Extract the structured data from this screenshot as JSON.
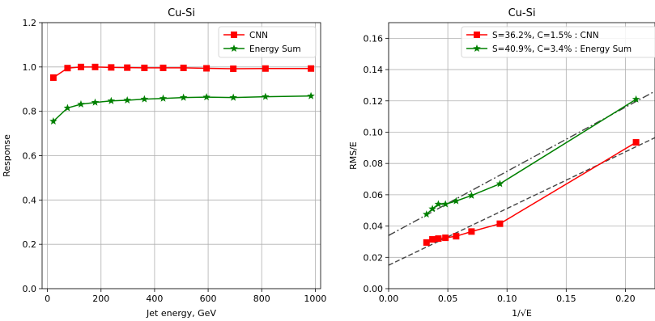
{
  "chart_data": [
    {
      "type": "line",
      "title": "Cu-Si",
      "xlabel": "Jet energy, GeV",
      "ylabel": "Response",
      "xlim": [
        -20,
        1020
      ],
      "ylim": [
        0.0,
        1.2
      ],
      "xticks": [
        0,
        200,
        400,
        600,
        800,
        1000
      ],
      "yticks": [
        0.0,
        0.2,
        0.4,
        0.6,
        0.8,
        1.0,
        1.2
      ],
      "xtick_labels": [
        "0",
        "200",
        "400",
        "600",
        "800",
        "1000"
      ],
      "ytick_labels": [
        "0.0",
        "0.2",
        "0.4",
        "0.6",
        "0.8",
        "1.0",
        "1.2"
      ],
      "grid": true,
      "legend_position": "top-right",
      "series": [
        {
          "name": "CNN",
          "color": "#ff0000",
          "marker": "square",
          "x": [
            22,
            75,
            125,
            178,
            238,
            298,
            362,
            432,
            508,
            594,
            694,
            814,
            984
          ],
          "y": [
            0.952,
            0.995,
            1.0,
            1.0,
            0.998,
            0.997,
            0.996,
            0.996,
            0.996,
            0.994,
            0.992,
            0.993,
            0.993
          ]
        },
        {
          "name": "Energy Sum",
          "color": "#008000",
          "marker": "star",
          "x": [
            22,
            75,
            125,
            178,
            238,
            298,
            362,
            432,
            508,
            594,
            694,
            814,
            984
          ],
          "y": [
            0.755,
            0.815,
            0.832,
            0.84,
            0.847,
            0.85,
            0.855,
            0.858,
            0.862,
            0.864,
            0.862,
            0.866,
            0.869
          ]
        }
      ]
    },
    {
      "type": "line",
      "title": "Cu-Si",
      "xlabel": "1/√E",
      "ylabel": "RMS/E",
      "xlim": [
        0.0,
        0.225
      ],
      "ylim": [
        0.0,
        0.17
      ],
      "xticks": [
        0.0,
        0.05,
        0.1,
        0.15,
        0.2
      ],
      "yticks": [
        0.0,
        0.02,
        0.04,
        0.06,
        0.08,
        0.1,
        0.12,
        0.14,
        0.16
      ],
      "xtick_labels": [
        "0.00",
        "0.05",
        "0.10",
        "0.15",
        "0.20"
      ],
      "ytick_labels": [
        "0.00",
        "0.02",
        "0.04",
        "0.06",
        "0.08",
        "0.10",
        "0.12",
        "0.14",
        "0.16"
      ],
      "grid": true,
      "legend_position": "top-right",
      "series": [
        {
          "name": "S=36.2%, C=1.5% : CNN",
          "color": "#ff0000",
          "marker": "square",
          "x": [
            0.032,
            0.037,
            0.042,
            0.048,
            0.057,
            0.07,
            0.094,
            0.209
          ],
          "y": [
            0.0295,
            0.0315,
            0.032,
            0.0325,
            0.0335,
            0.0365,
            0.0415,
            0.0935
          ]
        },
        {
          "name": "S=40.9%, C=3.4% : Energy Sum",
          "color": "#008000",
          "marker": "star",
          "x": [
            0.032,
            0.037,
            0.042,
            0.048,
            0.057,
            0.07,
            0.094,
            0.209
          ],
          "y": [
            0.0475,
            0.051,
            0.054,
            0.054,
            0.056,
            0.0595,
            0.067,
            0.121
          ]
        }
      ],
      "fit_lines": [
        {
          "style": "dashed",
          "color": "#444444",
          "x": [
            0.0,
            0.225
          ],
          "y": [
            0.015,
            0.0965
          ]
        },
        {
          "style": "dashdot",
          "color": "#444444",
          "x": [
            0.0,
            0.225
          ],
          "y": [
            0.034,
            0.1262
          ]
        }
      ]
    }
  ]
}
